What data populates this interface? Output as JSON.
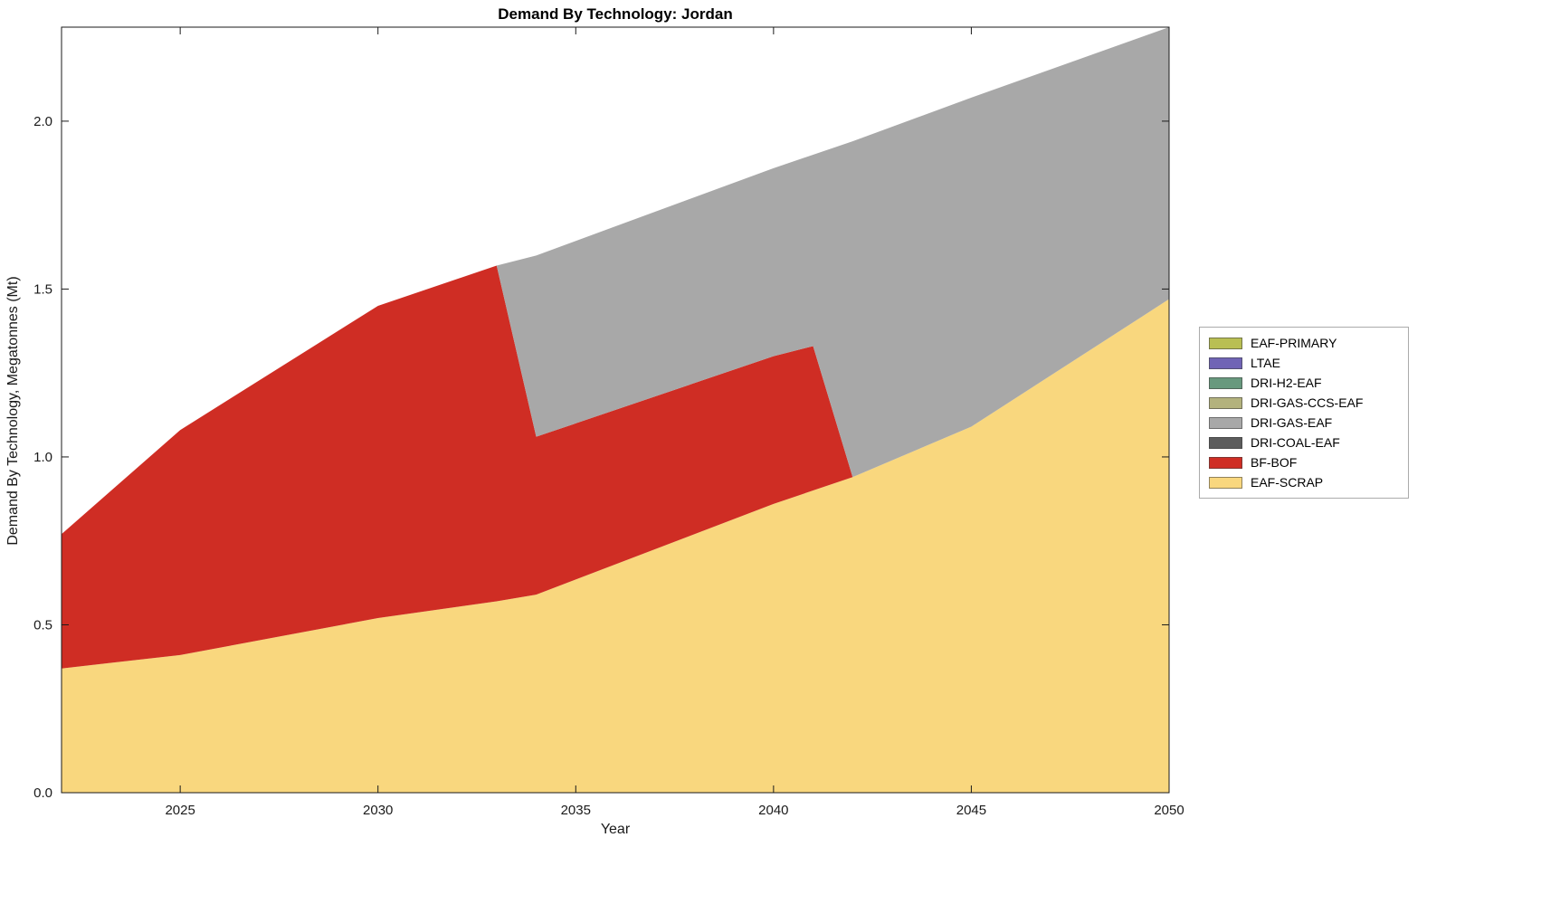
{
  "title": "Demand By Technology: Jordan",
  "chart_data": {
    "type": "area",
    "stacked": true,
    "title": "Demand By Technology: Jordan",
    "xlabel": "Year",
    "ylabel": "Demand By Technology, Megatonnes (Mt)",
    "xlim": [
      2022,
      2050
    ],
    "ylim": [
      0,
      2.28
    ],
    "grid": false,
    "legend_position": "right-outside",
    "xticks": [
      2025,
      2030,
      2035,
      2040,
      2045,
      2050
    ],
    "xtick_labels": [
      "2025",
      "2030",
      "2035",
      "2040",
      "2045",
      "2050"
    ],
    "yticks": [
      0.0,
      0.5,
      1.0,
      1.5,
      2.0
    ],
    "ytick_labels": [
      "0.0",
      "0.5",
      "1.0",
      "1.5",
      "2.0"
    ],
    "x": [
      2022,
      2025,
      2030,
      2033,
      2034,
      2040,
      2041,
      2042,
      2045,
      2050
    ],
    "series": [
      {
        "name": "EAF-SCRAP",
        "color": "#f9d77e",
        "values": [
          0.37,
          0.41,
          0.52,
          0.57,
          0.59,
          0.86,
          0.9,
          0.94,
          1.09,
          1.47
        ]
      },
      {
        "name": "BF-BOF",
        "color": "#cf2d24",
        "values": [
          0.4,
          0.67,
          0.93,
          1.0,
          0.47,
          0.44,
          0.43,
          0.0,
          0.0,
          0.0
        ]
      },
      {
        "name": "DRI-COAL-EAF",
        "color": "#5c5c5c",
        "values": [
          0,
          0,
          0,
          0,
          0,
          0,
          0,
          0,
          0,
          0
        ]
      },
      {
        "name": "DRI-GAS-EAF",
        "color": "#a8a8a8",
        "values": [
          0.0,
          0.0,
          0.0,
          0.0,
          0.54,
          0.56,
          0.57,
          1.0,
          0.98,
          0.81
        ]
      },
      {
        "name": "DRI-GAS-CCS-EAF",
        "color": "#b3b27d",
        "values": [
          0,
          0,
          0,
          0,
          0,
          0,
          0,
          0,
          0,
          0
        ]
      },
      {
        "name": "DRI-H2-EAF",
        "color": "#68997e",
        "values": [
          0,
          0,
          0,
          0,
          0,
          0,
          0,
          0,
          0,
          0
        ]
      },
      {
        "name": "LTAE",
        "color": "#7064b5",
        "values": [
          0,
          0,
          0,
          0,
          0,
          0,
          0,
          0,
          0,
          0
        ]
      },
      {
        "name": "EAF-PRIMARY",
        "color": "#b9bf53",
        "values": [
          0,
          0,
          0,
          0,
          0,
          0,
          0,
          0,
          0,
          0
        ]
      }
    ],
    "legend_order": [
      "EAF-PRIMARY",
      "LTAE",
      "DRI-H2-EAF",
      "DRI-GAS-CCS-EAF",
      "DRI-GAS-EAF",
      "DRI-COAL-EAF",
      "BF-BOF",
      "EAF-SCRAP"
    ],
    "axis_color": "#1a1a1a"
  }
}
